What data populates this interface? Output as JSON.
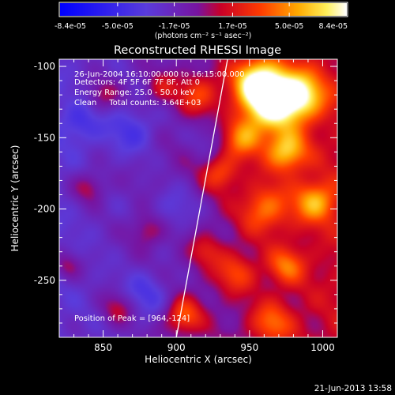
{
  "chart_data": {
    "type": "heatmap",
    "title": "Reconstructed RHESSI Image",
    "xlabel": "Heliocentric X (arcsec)",
    "ylabel": "Heliocentric Y (arcsec)",
    "xlim": [
      820,
      1010
    ],
    "ylim": [
      -290,
      -95
    ],
    "x_ticks": [
      850,
      900,
      950,
      1000
    ],
    "y_ticks": [
      -100,
      -150,
      -200,
      -250
    ],
    "colorbar": {
      "min": -8.4e-05,
      "max": 8.4e-05,
      "tick_labels": [
        "-8.4e-05",
        "-5.0e-05",
        "-1.7e-05",
        "1.7e-05",
        "5.0e-05",
        "8.4e-05"
      ],
      "unit_label": "(photons cm⁻² s⁻¹ asec⁻²)"
    },
    "annotations": [
      "26-Jun-2004 16:10:00.000 to 16:15:00.000",
      "Detectors: 4F 5F 6F 7F 8F, Att 0",
      "Energy Range: 25.0 - 50.0 keV",
      "Clean     Total counts: 3.64E+03"
    ],
    "peak_label": "Position of Peak = [964,-124]",
    "peak_position": [
      964,
      -124
    ],
    "limb_line": [
      [
        900,
        -290
      ],
      [
        935,
        -95
      ]
    ],
    "sources": [
      {
        "x": 965,
        "y": -125,
        "amp": 1.0,
        "sigma": 14
      },
      {
        "x": 955,
        "y": -110,
        "amp": 0.8,
        "sigma": 12
      },
      {
        "x": 985,
        "y": -120,
        "amp": 0.75,
        "sigma": 12
      },
      {
        "x": 945,
        "y": -150,
        "amp": 0.6,
        "sigma": 10
      },
      {
        "x": 975,
        "y": -160,
        "amp": 0.7,
        "sigma": 10
      },
      {
        "x": 995,
        "y": -195,
        "amp": 0.6,
        "sigma": 10
      },
      {
        "x": 960,
        "y": -200,
        "amp": 0.5,
        "sigma": 12
      },
      {
        "x": 930,
        "y": -175,
        "amp": 0.45,
        "sigma": 9
      },
      {
        "x": 915,
        "y": -120,
        "amp": 0.45,
        "sigma": 10
      },
      {
        "x": 890,
        "y": -115,
        "amp": 0.3,
        "sigma": 8
      },
      {
        "x": 940,
        "y": -245,
        "amp": 0.4,
        "sigma": 10
      },
      {
        "x": 975,
        "y": -240,
        "amp": 0.45,
        "sigma": 9
      },
      {
        "x": 905,
        "y": -275,
        "amp": 0.55,
        "sigma": 9
      },
      {
        "x": 965,
        "y": -280,
        "amp": 0.45,
        "sigma": 10
      },
      {
        "x": 860,
        "y": -270,
        "amp": 0.35,
        "sigma": 8
      },
      {
        "x": 840,
        "y": -185,
        "amp": 0.35,
        "sigma": 8
      },
      {
        "x": 880,
        "y": -215,
        "amp": 0.3,
        "sigma": 8
      },
      {
        "x": 920,
        "y": -230,
        "amp": 0.3,
        "sigma": 8
      },
      {
        "x": 850,
        "y": -120,
        "amp": 0.3,
        "sigma": 8
      },
      {
        "x": 825,
        "y": -240,
        "amp": 0.3,
        "sigma": 7
      },
      {
        "x": 870,
        "y": -145,
        "amp": -0.3,
        "sigma": 12
      },
      {
        "x": 880,
        "y": -260,
        "amp": -0.3,
        "sigma": 12
      },
      {
        "x": 900,
        "y": -200,
        "amp": -0.25,
        "sigma": 12
      },
      {
        "x": 925,
        "y": -150,
        "amp": -0.2,
        "sigma": 10
      },
      {
        "x": 835,
        "y": -140,
        "amp": -0.25,
        "sigma": 10
      }
    ]
  },
  "footer": {
    "timestamp": "21-Jun-2013 13:58"
  }
}
